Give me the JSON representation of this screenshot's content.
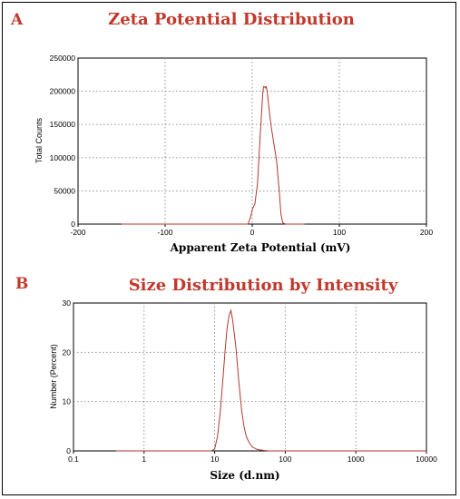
{
  "panel_a": {
    "letter": "A",
    "title": "Zeta Potential Distribution",
    "xlabel": "Apparent Zeta Potential (mV)",
    "ylabel": "Total Counts"
  },
  "panel_b": {
    "letter": "B",
    "title": "Size Distribution  by Intensity",
    "xlabel": "Size (d.nm)",
    "ylabel": "Number (Percent)"
  },
  "colors": {
    "curve": "#b03a2e",
    "title": "#c0392b"
  },
  "chart_data": [
    {
      "type": "line",
      "title": "Zeta Potential Distribution",
      "xlabel": "Apparent Zeta Potential (mV)",
      "ylabel": "Total Counts",
      "xlim": [
        -200,
        200
      ],
      "ylim": [
        0,
        250000
      ],
      "xticks": [
        -200,
        -100,
        0,
        100,
        200
      ],
      "yticks": [
        0,
        50000,
        100000,
        150000,
        200000,
        250000
      ],
      "grid": true,
      "series": [
        {
          "x": [
            -150,
            -5,
            -2,
            0,
            3,
            6,
            9,
            12,
            13,
            14,
            15,
            16,
            17,
            18,
            20,
            22,
            25,
            28,
            31,
            33,
            35,
            38,
            60
          ],
          "values": [
            0,
            0,
            10000,
            22000,
            30000,
            60000,
            130000,
            195000,
            207000,
            207000,
            205000,
            207000,
            201000,
            190000,
            165000,
            145000,
            120000,
            95000,
            50000,
            15000,
            2000,
            0,
            0
          ]
        }
      ]
    },
    {
      "type": "line",
      "title": "Size Distribution  by Intensity",
      "xlabel": "Size (d.nm)",
      "ylabel": "Number (Percent)",
      "xscale": "log",
      "xlim": [
        0.1,
        10000
      ],
      "ylim": [
        0,
        30
      ],
      "xticks": [
        0.1,
        1,
        10,
        100,
        1000,
        10000
      ],
      "yticks": [
        0,
        10,
        20,
        30
      ],
      "grid": true,
      "series": [
        {
          "x": [
            0.4,
            9,
            10,
            11,
            12,
            13,
            14,
            15,
            16,
            17,
            18,
            20,
            22,
            24,
            26,
            28,
            30,
            34,
            40,
            50,
            60,
            10000
          ],
          "values": [
            0,
            0,
            0.4,
            3,
            8,
            14,
            20,
            25,
            27.5,
            28.5,
            26.5,
            21,
            14,
            8.5,
            5,
            3,
            2,
            0.8,
            0.3,
            0.1,
            0,
            0
          ]
        }
      ]
    }
  ]
}
